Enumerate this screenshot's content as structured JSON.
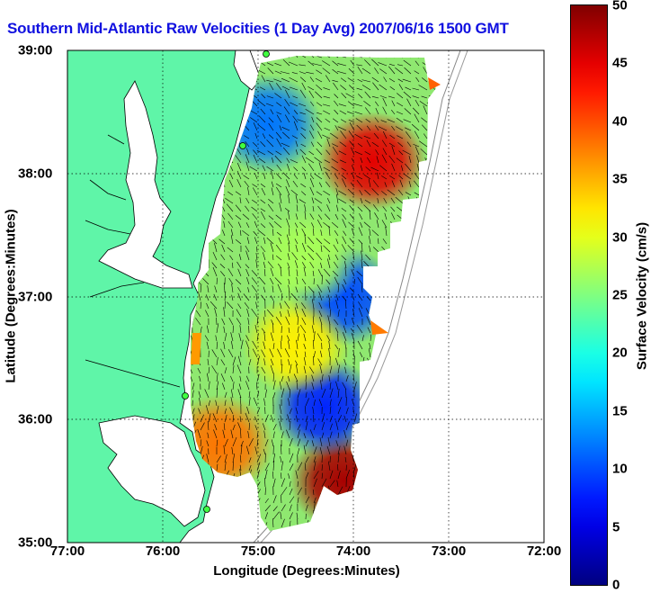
{
  "title": "Southern Mid-Atlantic Raw Velocities (1 Day Avg) 2007/06/16 1500 GMT",
  "map": {
    "x_label": "Longitude (Degrees:Minutes)",
    "y_label": "Latitude (Degrees:Minutes)",
    "x_ticks": [
      "77:00",
      "76:00",
      "75:00",
      "74:00",
      "73:00",
      "72:00"
    ],
    "y_ticks": [
      "39:00",
      "38:00",
      "37:00",
      "36:00",
      "35:00"
    ],
    "lon_range": [
      -77,
      -72
    ],
    "lat_range": [
      35,
      39
    ],
    "grid": true,
    "land_color": "#5ff5a8",
    "water_color": "#ffffff"
  },
  "colorbar": {
    "label": "Surface Velocity (cm/s)",
    "ticks": [
      "50",
      "45",
      "40",
      "35",
      "30",
      "25",
      "20",
      "15",
      "10",
      "5",
      "0"
    ],
    "range": [
      0,
      50
    ],
    "colormap": "jet"
  },
  "chart_data": {
    "type": "heatmap",
    "title": "Southern Mid-Atlantic Raw Velocities (1 Day Avg) 2007/06/16 1500 GMT",
    "xlabel": "Longitude (Degrees:Minutes)",
    "ylabel": "Latitude (Degrees:Minutes)",
    "xlim": [
      -77,
      -72
    ],
    "ylim": [
      35,
      39
    ],
    "color_range": [
      0,
      50
    ],
    "color_label": "Surface Velocity (cm/s)",
    "hotspots": [
      {
        "lon": -73.8,
        "lat": 38.1,
        "speed": 45
      },
      {
        "lon": -74.1,
        "lat": 35.5,
        "speed": 48
      },
      {
        "lon": -75.4,
        "lat": 35.8,
        "speed": 38
      },
      {
        "lon": -74.3,
        "lat": 36.1,
        "speed": 8
      },
      {
        "lon": -74.1,
        "lat": 37.0,
        "speed": 10
      },
      {
        "lon": -74.9,
        "lat": 38.4,
        "speed": 12
      },
      {
        "lon": -74.5,
        "lat": 37.3,
        "speed": 27
      },
      {
        "lon": -74.6,
        "lat": 36.6,
        "speed": 32
      }
    ]
  }
}
